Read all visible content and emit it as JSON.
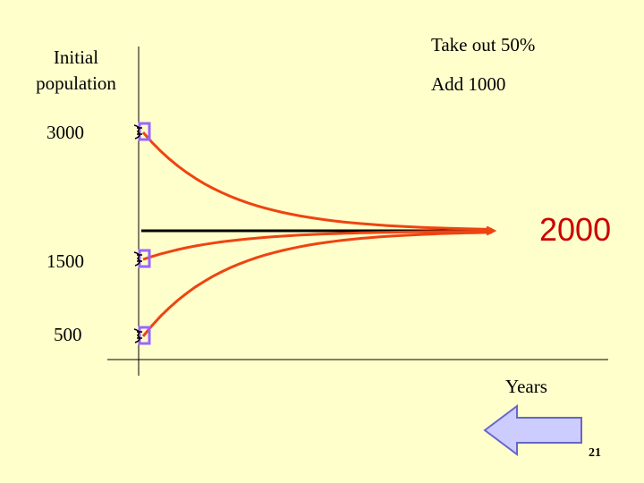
{
  "chart_data": {
    "type": "line",
    "ylabel": "Initial population",
    "xlabel": "Years",
    "y_ticks": [
      {
        "value": 3000,
        "label": "3000"
      },
      {
        "value": 1500,
        "label": "1500"
      },
      {
        "value": 500,
        "label": "500"
      }
    ],
    "equilibrium": {
      "value": 2000,
      "label": "2000"
    },
    "series": [
      {
        "start": 3000,
        "end": 2000
      },
      {
        "start": 1500,
        "end": 2000
      },
      {
        "start": 500,
        "end": 2000
      }
    ],
    "annotations": [
      "Take out 50%",
      "Add 1000"
    ]
  },
  "colors": {
    "background": "#ffffcc",
    "curve": "#ee4411",
    "equilibrium_text": "#cc0000",
    "marker": "#9966ff",
    "arrow_fill": "#ccccff",
    "arrow_stroke": "#6666cc"
  },
  "icons": {
    "marker": "fish-icon",
    "navigation": "left-arrow-icon"
  },
  "page_number": "21"
}
